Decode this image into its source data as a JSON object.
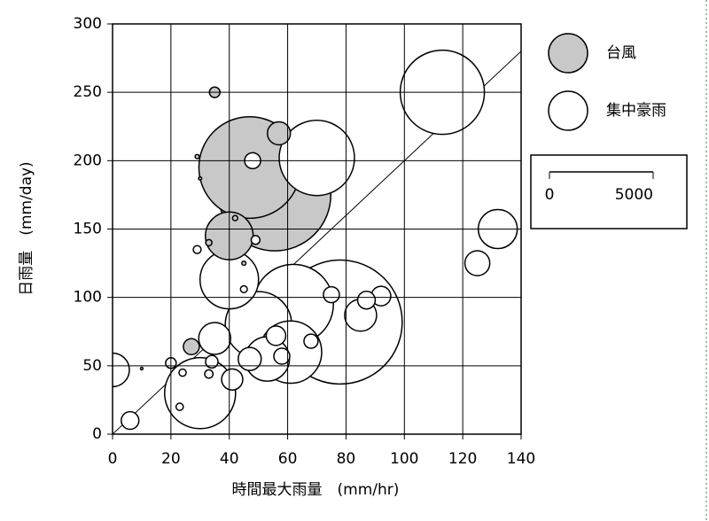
{
  "chart_data": {
    "type": "bubble",
    "x_label": "時間最大雨量　(mm/hr)",
    "y_label": "日雨量　(mm/day)",
    "xlim": [
      0,
      140
    ],
    "xticks": [
      0,
      20,
      40,
      60,
      80,
      100,
      120,
      140
    ],
    "ylim": [
      0,
      300
    ],
    "yticks": [
      0,
      50,
      100,
      150,
      200,
      250,
      300
    ],
    "grid": true,
    "diagonal": {
      "x": [
        0,
        140
      ],
      "y": [
        0,
        280
      ]
    },
    "size_scale": {
      "ticks": [
        0,
        5000
      ]
    },
    "series": [
      {
        "name": "台風",
        "color": "#c8c8c8",
        "x": [
          55.6,
          47,
          40,
          57,
          27,
          35,
          29,
          33,
          45,
          42,
          30
        ],
        "values": [
          175,
          195,
          145,
          220,
          64,
          250,
          203,
          140,
          125,
          158,
          187
        ],
        "sizes": [
          5400,
          4900,
          2300,
          1110,
          770,
          510,
          200,
          300,
          200,
          250,
          150
        ]
      },
      {
        "name": "集中豪雨",
        "color": "#ffffff",
        "x": [
          113,
          70,
          132,
          125,
          78,
          62,
          40,
          50,
          30,
          61,
          53,
          0,
          6,
          85,
          92,
          87,
          75,
          35,
          41,
          47,
          58,
          56,
          68,
          20,
          34,
          48,
          49,
          23,
          29,
          33,
          45,
          24,
          10
        ],
        "values": [
          250,
          202,
          150,
          125,
          82,
          95,
          113,
          80,
          30,
          60,
          55,
          47,
          10,
          87,
          101,
          98,
          102,
          70,
          40,
          55,
          57,
          72,
          68,
          52,
          53,
          200,
          142,
          20,
          135,
          44,
          106,
          45,
          48
        ],
        "sizes": [
          4060,
          3630,
          1880,
          1200,
          5980,
          3850,
          2820,
          3200,
          3420,
          3000,
          2140,
          1620,
          850,
          1540,
          940,
          850,
          770,
          1540,
          1020,
          1110,
          770,
          940,
          680,
          510,
          600,
          770,
          420,
          350,
          380,
          400,
          330,
          350,
          120
        ]
      }
    ]
  }
}
